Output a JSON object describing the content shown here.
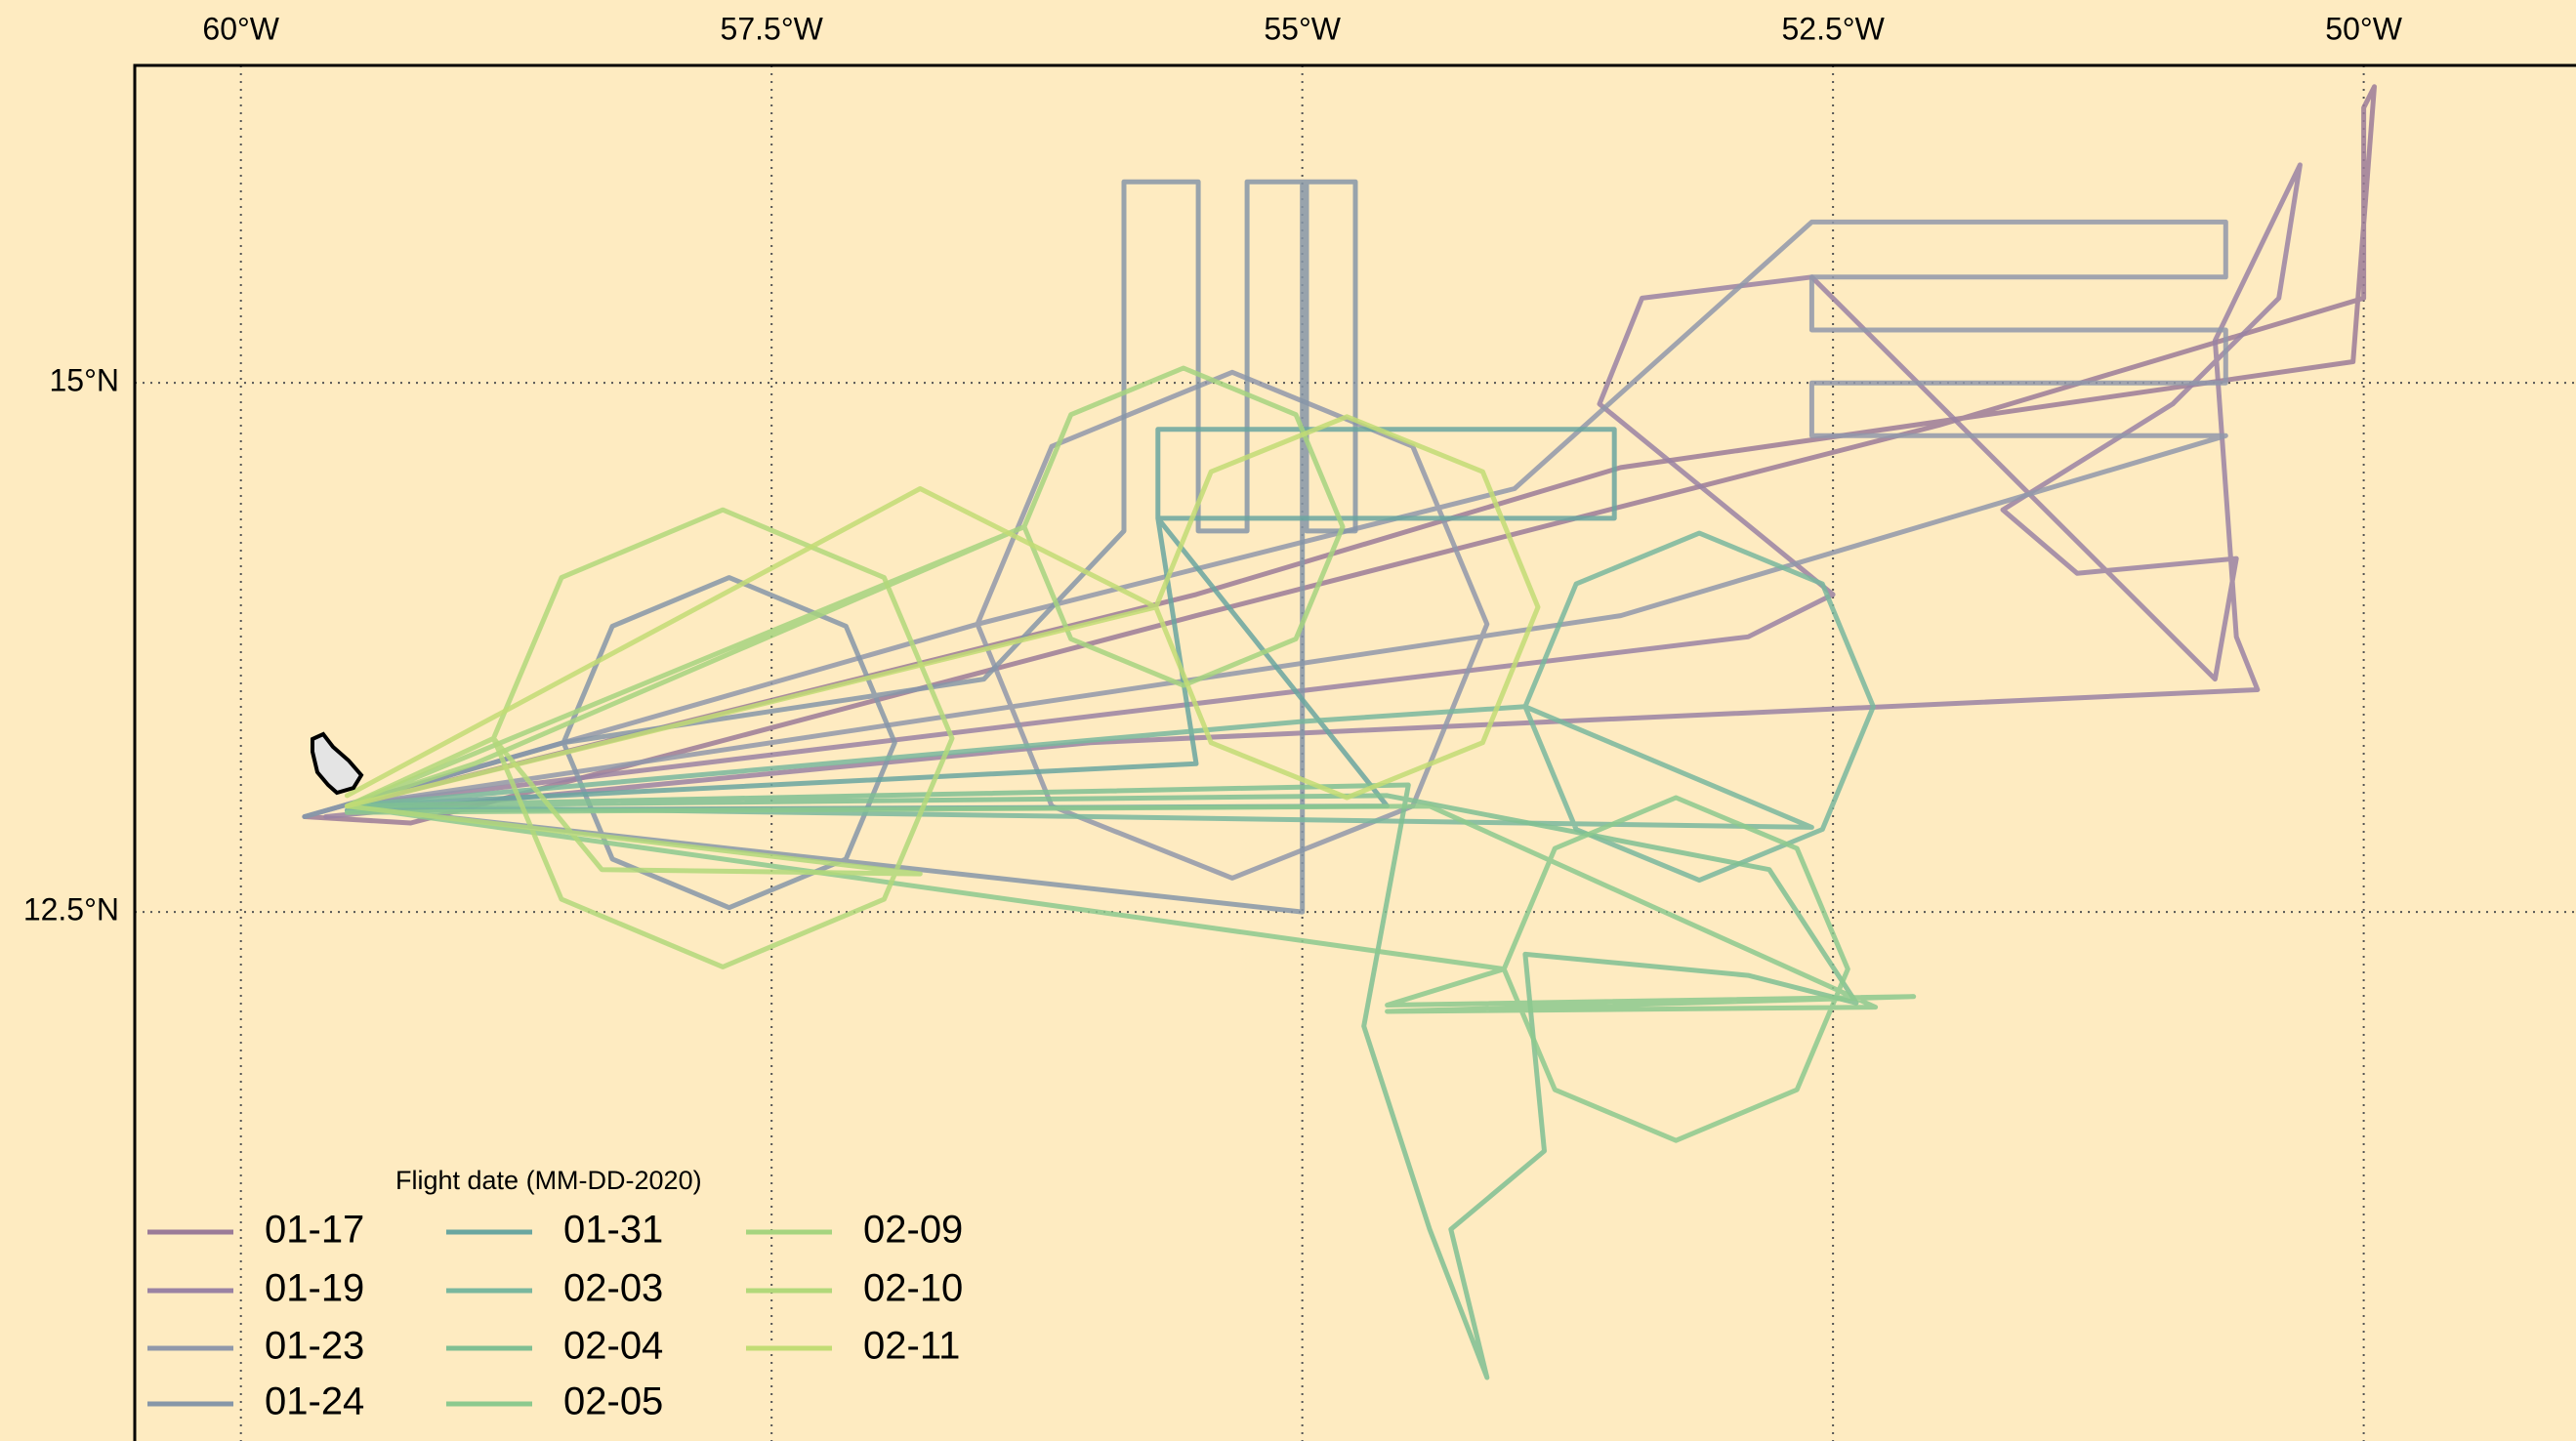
{
  "chart_data": {
    "type": "map",
    "xlim": [
      -60.5,
      -49.0
    ],
    "ylim": [
      10.0,
      16.5
    ],
    "xticks": [
      {
        "value": -60,
        "label": "60°W"
      },
      {
        "value": -57.5,
        "label": "57.5°W"
      },
      {
        "value": -55,
        "label": "55°W"
      },
      {
        "value": -52.5,
        "label": "52.5°W"
      },
      {
        "value": -50,
        "label": "50°W"
      }
    ],
    "yticks": [
      {
        "value": 12.5,
        "label": "12.5°N"
      },
      {
        "value": 15,
        "label": "15°N"
      }
    ],
    "grid": true,
    "legend": {
      "title": "Flight date (MM-DD-2020)",
      "position": "lower left",
      "columns": 3
    },
    "series": [
      {
        "name": "01-17",
        "color": "#9b7b98",
        "x": [
          -59.7,
          -59.2,
          -55.5,
          -52.0,
          -50.0,
          -50.0,
          -49.95,
          -50.05,
          -53.5,
          -55.5,
          -59.5
        ],
        "values": [
          12.95,
          12.92,
          13.9,
          14.8,
          15.4,
          16.3,
          16.4,
          15.1,
          14.6,
          14.0,
          13.0
        ]
      },
      {
        "name": "01-19",
        "color": "#9a82a3",
        "x": [
          -59.6,
          -56.0,
          -50.5,
          -50.6,
          -50.7,
          -50.3,
          -50.4,
          -50.9,
          -51.7,
          -51.35,
          -50.6,
          -50.7,
          -52.6,
          -53.4,
          -53.6,
          -52.5,
          -52.9,
          -59.5
        ],
        "values": [
          12.95,
          13.3,
          13.55,
          13.8,
          15.2,
          16.03,
          15.4,
          14.9,
          14.4,
          14.1,
          14.17,
          13.6,
          15.5,
          15.4,
          14.9,
          14.0,
          13.8,
          13.0
        ]
      },
      {
        "name": "01-23",
        "color": "#9098aa",
        "x": [
          -59.7,
          -56.53,
          -56.18,
          -55.33,
          -54.48,
          -54.13,
          -54.48,
          -55.33,
          -56.18,
          -56.53,
          -54.0,
          -52.6,
          -50.65,
          -50.65,
          -52.6,
          -52.6,
          -50.65,
          -50.65,
          -52.6,
          -52.6,
          -50.65,
          -53.5,
          -59.5
        ],
        "values": [
          12.95,
          13.86,
          14.7,
          15.05,
          14.7,
          13.86,
          13.0,
          12.66,
          13.0,
          13.86,
          14.5,
          15.76,
          15.76,
          15.5,
          15.5,
          15.25,
          15.25,
          15.0,
          15.0,
          14.75,
          14.75,
          13.9,
          13.0
        ]
      },
      {
        "name": "01-24",
        "color": "#8696a8",
        "x": [
          -59.7,
          -58.48,
          -58.25,
          -57.7,
          -57.15,
          -56.92,
          -57.15,
          -57.7,
          -58.25,
          -58.48,
          -56.5,
          -55.84,
          -55.84,
          -55.49,
          -55.49,
          -55.26,
          -55.26,
          -54.98,
          -54.98,
          -54.75,
          -54.75,
          -55.0,
          -55.0,
          -59.5
        ],
        "values": [
          12.95,
          13.3,
          13.85,
          14.08,
          13.85,
          13.3,
          12.75,
          12.52,
          12.75,
          13.3,
          13.6,
          14.3,
          15.95,
          15.95,
          14.3,
          14.3,
          15.95,
          15.95,
          14.3,
          14.3,
          15.95,
          15.95,
          12.5,
          13.0
        ]
      },
      {
        "name": "01-31",
        "color": "#6aa6a0",
        "x": [
          -59.5,
          -55.5,
          -55.68,
          -55.68,
          -53.53,
          -53.53,
          -55.68,
          -54.6,
          -59.5
        ],
        "values": [
          13.0,
          13.2,
          14.36,
          14.78,
          14.78,
          14.36,
          14.36,
          13.0,
          12.98
        ]
      },
      {
        "name": "02-03",
        "color": "#79b79e",
        "x": [
          -59.5,
          -55.0,
          -53.95,
          -53.71,
          -53.13,
          -52.55,
          -52.31,
          -52.55,
          -53.13,
          -53.71,
          -53.95,
          -52.6,
          -56.0,
          -59.5
        ],
        "values": [
          13.0,
          13.4,
          13.47,
          14.05,
          14.29,
          14.05,
          13.47,
          12.89,
          12.65,
          12.89,
          13.47,
          12.9,
          12.95,
          13.0
        ]
      },
      {
        "name": "02-04",
        "color": "#7fbf93",
        "x": [
          -59.5,
          -54.5,
          -54.71,
          -54.4,
          -54.13,
          -54.3,
          -53.86,
          -53.95,
          -52.9,
          -52.39,
          -52.8,
          -54.6,
          -59.5
        ],
        "values": [
          13.0,
          13.1,
          11.96,
          11.0,
          10.3,
          11.0,
          11.37,
          12.3,
          12.2,
          12.07,
          12.7,
          13.05,
          13.0
        ]
      },
      {
        "name": "02-05",
        "color": "#8cc98e",
        "x": [
          -59.5,
          -54.05,
          -53.81,
          -53.24,
          -52.67,
          -52.43,
          -52.67,
          -53.24,
          -53.81,
          -54.05,
          -54.6,
          -52.12,
          -54.6,
          -52.3,
          -54.4,
          -59.5
        ],
        "values": [
          13.0,
          12.23,
          12.8,
          13.04,
          12.8,
          12.23,
          11.66,
          11.42,
          11.66,
          12.23,
          12.06,
          12.1,
          12.03,
          12.05,
          13.0,
          12.97
        ]
      },
      {
        "name": "02-09",
        "color": "#a6d47f",
        "x": [
          -59.5,
          -56.31,
          -56.09,
          -55.56,
          -55.03,
          -54.81,
          -55.03,
          -55.56,
          -56.09,
          -56.31,
          -58.9,
          -59.5
        ],
        "values": [
          13.0,
          14.32,
          14.85,
          15.07,
          14.85,
          14.32,
          13.79,
          13.57,
          13.79,
          14.32,
          13.2,
          13.0
        ]
      },
      {
        "name": "02-10",
        "color": "#b2d87a",
        "x": [
          -59.5,
          -58.81,
          -58.49,
          -57.73,
          -56.97,
          -56.65,
          -56.97,
          -57.73,
          -58.49,
          -58.81,
          -58.3,
          -56.8,
          -59.5
        ],
        "values": [
          13.0,
          13.32,
          14.08,
          14.4,
          14.08,
          13.32,
          12.56,
          12.24,
          12.56,
          13.32,
          12.7,
          12.68,
          13.0
        ]
      },
      {
        "name": "02-11",
        "color": "#c2dc74",
        "x": [
          -59.5,
          -55.69,
          -55.43,
          -54.79,
          -54.15,
          -53.89,
          -54.15,
          -54.79,
          -55.43,
          -55.69,
          -56.8,
          -59.5
        ],
        "values": [
          13.0,
          13.94,
          14.58,
          14.84,
          14.58,
          13.94,
          13.3,
          13.04,
          13.3,
          13.94,
          14.5,
          13.05
        ]
      }
    ]
  }
}
